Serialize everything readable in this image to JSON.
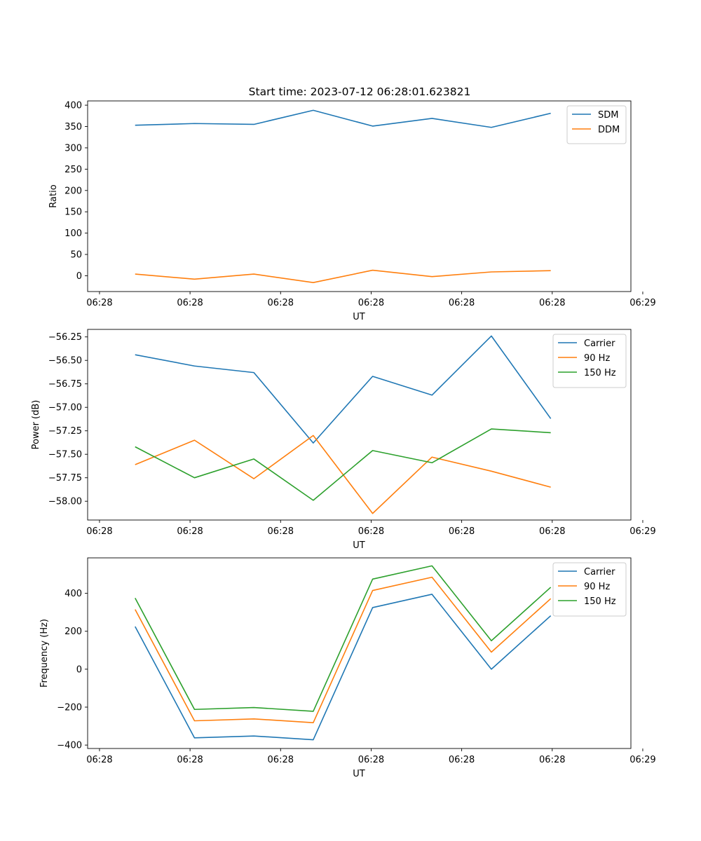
{
  "figure_title": "Start time: 2023-07-12 06:28:01.623821",
  "colors": {
    "blue": "#1f77b4",
    "orange": "#ff7f0e",
    "green": "#2ca02c"
  },
  "chart_data": [
    {
      "type": "line",
      "title": "Start time: 2023-07-12 06:28:01.623821",
      "xlabel": "UT",
      "ylabel": "Ratio",
      "x": [
        1,
        2,
        3,
        4,
        5,
        6,
        7,
        8
      ],
      "xlim": [
        0.2,
        9.35
      ],
      "x_ticks": [
        0.4,
        1.925,
        3.45,
        4.975,
        6.5,
        8.025,
        9.55
      ],
      "x_tick_labels": [
        "06:28",
        "06:28",
        "06:28",
        "06:28",
        "06:28",
        "06:28",
        "06:29"
      ],
      "ylim": [
        -37,
        410
      ],
      "y_ticks": [
        0,
        50,
        100,
        150,
        200,
        250,
        300,
        350,
        400
      ],
      "y_tick_labels": [
        "0",
        "50",
        "100",
        "150",
        "200",
        "250",
        "300",
        "350",
        "400"
      ],
      "series": [
        {
          "name": "SDM",
          "color": "#1f77b4",
          "values": [
            353,
            357,
            355,
            388,
            351,
            369,
            348,
            381
          ]
        },
        {
          "name": "DDM",
          "color": "#ff7f0e",
          "values": [
            4,
            -8,
            4,
            -16,
            13,
            -2,
            9,
            12
          ]
        }
      ],
      "legend": "top-right",
      "grid": false
    },
    {
      "type": "line",
      "title": "",
      "xlabel": "UT",
      "ylabel": "Power (dB)",
      "x": [
        1,
        2,
        3,
        4,
        5,
        6,
        7,
        8
      ],
      "xlim": [
        0.2,
        9.35
      ],
      "x_ticks": [
        0.4,
        1.925,
        3.45,
        4.975,
        6.5,
        8.025,
        9.55
      ],
      "x_tick_labels": [
        "06:28",
        "06:28",
        "06:28",
        "06:28",
        "06:28",
        "06:28",
        "06:29"
      ],
      "ylim": [
        -58.2,
        -56.17
      ],
      "y_ticks": [
        -58.0,
        -57.75,
        -57.5,
        -57.25,
        -57.0,
        -56.75,
        -56.5,
        -56.25
      ],
      "y_tick_labels": [
        "−58.00",
        "−57.75",
        "−57.50",
        "−57.25",
        "−57.00",
        "−56.75",
        "−56.50",
        "−56.25"
      ],
      "series": [
        {
          "name": "Carrier",
          "color": "#1f77b4",
          "values": [
            -56.44,
            -56.56,
            -56.63,
            -57.38,
            -56.67,
            -56.87,
            -56.24,
            -57.12
          ]
        },
        {
          "name": "90 Hz",
          "color": "#ff7f0e",
          "values": [
            -57.61,
            -57.35,
            -57.76,
            -57.3,
            -58.13,
            -57.53,
            -57.68,
            -57.85
          ]
        },
        {
          "name": "150 Hz",
          "color": "#2ca02c",
          "values": [
            -57.42,
            -57.75,
            -57.55,
            -57.99,
            -57.46,
            -57.59,
            -57.23,
            -57.27
          ]
        }
      ],
      "legend": "top-right",
      "grid": false
    },
    {
      "type": "line",
      "title": "",
      "xlabel": "UT",
      "ylabel": "Frequency (Hz)",
      "x": [
        1,
        2,
        3,
        4,
        5,
        6,
        7,
        8
      ],
      "xlim": [
        0.2,
        9.35
      ],
      "x_ticks": [
        0.4,
        1.925,
        3.45,
        4.975,
        6.5,
        8.025,
        9.55
      ],
      "x_tick_labels": [
        "06:28",
        "06:28",
        "06:28",
        "06:28",
        "06:28",
        "06:28",
        "06:29"
      ],
      "ylim": [
        -418,
        587
      ],
      "y_ticks": [
        -400,
        -200,
        0,
        200,
        400
      ],
      "y_tick_labels": [
        "−400",
        "−200",
        "0",
        "200",
        "400"
      ],
      "series": [
        {
          "name": "Carrier",
          "color": "#1f77b4",
          "values": [
            225,
            -362,
            -352,
            -372,
            325,
            395,
            0,
            282
          ]
        },
        {
          "name": "90 Hz",
          "color": "#ff7f0e",
          "values": [
            315,
            -272,
            -262,
            -282,
            415,
            485,
            90,
            372
          ]
        },
        {
          "name": "150 Hz",
          "color": "#2ca02c",
          "values": [
            375,
            -212,
            -202,
            -222,
            475,
            545,
            150,
            432
          ]
        }
      ],
      "legend": "top-right",
      "grid": false
    }
  ]
}
